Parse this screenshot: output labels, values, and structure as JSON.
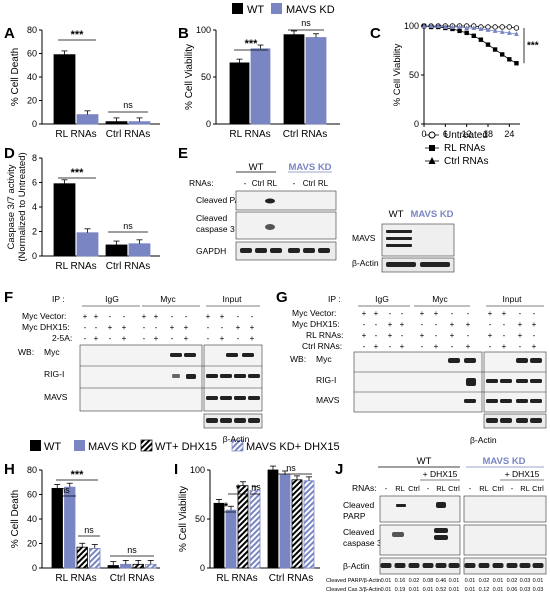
{
  "colors": {
    "wt": "#000000",
    "kd": "#7a86c4",
    "kd_text": "#7a86c4",
    "sig": "#000000"
  },
  "legend_top": {
    "wt": "WT",
    "kd": "MAVS KD"
  },
  "legend_bottom": {
    "wt": "WT",
    "kd": "MAVS KD",
    "wt_dhx": "WT+ DHX15",
    "kd_dhx": "MAVS KD+ DHX15"
  },
  "panels": {
    "A": "A",
    "B": "B",
    "C": "C",
    "D": "D",
    "E": "E",
    "F": "F",
    "G": "G",
    "H": "H",
    "I": "I",
    "J": "J"
  },
  "chart_data": [
    {
      "panel": "A",
      "type": "bar",
      "ylabel": "% Cell Death",
      "ylim": [
        0,
        80
      ],
      "yticks": [
        "0",
        "20",
        "40",
        "60",
        "80"
      ],
      "categories": [
        "RL RNAs",
        "Ctrl RNAs"
      ],
      "series": [
        {
          "name": "WT",
          "values": [
            59,
            2
          ]
        },
        {
          "name": "MAVS KD",
          "values": [
            8,
            2
          ]
        }
      ],
      "annotations": [
        "***",
        "ns"
      ]
    },
    {
      "panel": "B",
      "type": "bar",
      "ylabel": "% Cell Viability",
      "ylim": [
        0,
        100
      ],
      "yticks": [
        "0",
        "50",
        "100"
      ],
      "categories": [
        "RL RNAs",
        "Ctrl RNAs"
      ],
      "series": [
        {
          "name": "WT",
          "values": [
            65,
            95
          ]
        },
        {
          "name": "MAVS KD",
          "values": [
            80,
            92
          ]
        }
      ],
      "annotations": [
        "***",
        "ns"
      ]
    },
    {
      "panel": "C",
      "type": "line",
      "ylabel": "% Cell Viability",
      "ylim": [
        0,
        100
      ],
      "yticks": [
        "0",
        "50",
        "100"
      ],
      "x": [
        0,
        2,
        4,
        6,
        8,
        10,
        12,
        14,
        16,
        18,
        20,
        22,
        24,
        26
      ],
      "xticks": [
        "0",
        "6",
        "12",
        "18",
        "24"
      ],
      "series": [
        {
          "name": "Untreated",
          "marker": "circle",
          "values": [
            100,
            100,
            100,
            100,
            100,
            100,
            100,
            100,
            99,
            99,
            99,
            99,
            99,
            98
          ]
        },
        {
          "name": "RL RNAs",
          "marker": "square",
          "values": [
            100,
            99,
            99,
            98,
            97,
            95,
            93,
            90,
            86,
            81,
            76,
            71,
            66,
            62
          ]
        },
        {
          "name": "Ctrl RNAs",
          "marker": "triangle",
          "values": [
            100,
            100,
            100,
            99,
            99,
            99,
            98,
            98,
            97,
            96,
            95,
            94,
            93,
            92
          ]
        }
      ],
      "annotations": [
        "***"
      ]
    },
    {
      "panel": "D",
      "type": "bar",
      "ylabel": "Caspase 3/7 activity",
      "ylabel2": "(Normalized to Untreated)",
      "ylim": [
        0,
        8
      ],
      "yticks": [
        "0",
        "2",
        "4",
        "6",
        "8"
      ],
      "categories": [
        "RL RNAs",
        "Ctrl RNAs"
      ],
      "series": [
        {
          "name": "WT",
          "values": [
            5.9,
            0.9
          ]
        },
        {
          "name": "MAVS KD",
          "values": [
            1.9,
            1.0
          ]
        }
      ],
      "annotations": [
        "***",
        "ns"
      ]
    },
    {
      "panel": "H",
      "type": "bar",
      "ylabel": "% Cell Death",
      "ylim": [
        0,
        80
      ],
      "yticks": [
        "0",
        "20",
        "40",
        "60",
        "80"
      ],
      "categories": [
        "RL RNAs",
        "Ctrl RNAs"
      ],
      "series": [
        {
          "name": "WT",
          "values": [
            65,
            2
          ]
        },
        {
          "name": "MAVS KD",
          "values": [
            66,
            3
          ]
        },
        {
          "name": "WT+ DHX15",
          "values": [
            17,
            3
          ]
        },
        {
          "name": "MAVS KD+ DHX15",
          "values": [
            16,
            3
          ]
        }
      ],
      "annotations": [
        "***",
        "ns",
        "ns",
        "ns"
      ]
    },
    {
      "panel": "I",
      "type": "bar",
      "ylabel": "% Cell Viability",
      "ylim": [
        0,
        100
      ],
      "yticks": [
        "0",
        "50",
        "100"
      ],
      "categories": [
        "RL RNAs",
        "Ctrl RNAs"
      ],
      "series": [
        {
          "name": "WT",
          "values": [
            66,
            100
          ]
        },
        {
          "name": "MAVS KD",
          "values": [
            59,
            95
          ]
        },
        {
          "name": "WT+ DHX15",
          "values": [
            84,
            90
          ]
        },
        {
          "name": "MAVS KD+ DHX15",
          "values": [
            79,
            89
          ]
        }
      ],
      "annotations": [
        "*",
        "*",
        "ns",
        "ns"
      ]
    }
  ],
  "blotE": {
    "wt": "WT",
    "kd": "MAVS KD",
    "rnas": "RNAs:",
    "lanes": [
      "-",
      "Ctrl",
      "RL",
      "-",
      "Ctrl",
      "RL"
    ],
    "rows": [
      "Cleaved PARP",
      "Cleaved",
      "caspase 3",
      "GAPDH"
    ],
    "side_wt": "WT",
    "side_kd": "MAVS KD",
    "side_rows": [
      "MAVS",
      "β-Actin"
    ]
  },
  "blotF": {
    "ip": "IP :",
    "groups": [
      "IgG",
      "Myc",
      "Input"
    ],
    "conds": [
      "Myc Vector:",
      "Myc DHX15:",
      "2-5A:"
    ],
    "wb": "WB:",
    "rows": [
      "Myc",
      "RIG-I",
      "MAVS"
    ],
    "actin": "β-Actin",
    "vector": [
      "+",
      "+",
      "-",
      "-",
      "+",
      "+",
      "-",
      "-",
      "+",
      "+",
      "-",
      "-"
    ],
    "dhx": [
      "-",
      "-",
      "+",
      "+",
      "-",
      "-",
      "+",
      "+",
      "-",
      "-",
      "+",
      "+"
    ],
    "ab": [
      "-",
      "+",
      "-",
      "+",
      "-",
      "+",
      "-",
      "+",
      "-",
      "+",
      "-",
      "+"
    ]
  },
  "blotG": {
    "ip": "IP :",
    "groups": [
      "IgG",
      "Myc",
      "Input"
    ],
    "conds": [
      "Myc Vector:",
      "Myc DHX15:",
      "RL RNAs:",
      "Ctrl RNAs:"
    ],
    "wb": "WB:",
    "rows": [
      "Myc",
      "RIG-I",
      "MAVS"
    ],
    "actin": "β-Actin",
    "vector": [
      "+",
      "+",
      "-",
      "-",
      "+",
      "+",
      "-",
      "-",
      "+",
      "+",
      "-",
      "-"
    ],
    "dhx": [
      "-",
      "-",
      "+",
      "+",
      "-",
      "-",
      "+",
      "+",
      "-",
      "-",
      "+",
      "+"
    ],
    "rl": [
      "+",
      "-",
      "+",
      "-",
      "+",
      "-",
      "+",
      "-",
      "+",
      "-",
      "+",
      "-"
    ],
    "ctrl": [
      "-",
      "+",
      "-",
      "+",
      "-",
      "+",
      "-",
      "+",
      "-",
      "+",
      "-",
      "+"
    ]
  },
  "blotJ": {
    "wt": "WT",
    "kd": "MAVS KD",
    "dhx": "+ DHX15",
    "rnas": "RNAs:",
    "lanes": [
      "-",
      "RL",
      "Ctrl",
      "-",
      "RL",
      "Ctrl",
      "-",
      "RL",
      "Ctrl",
      "-",
      "RL",
      "Ctrl"
    ],
    "rows": [
      "Cleaved",
      "PARP",
      "Cleaved",
      "caspase 3",
      "β-Actin"
    ],
    "q1_label": "Cleaved PARP/β-Actin",
    "q1": [
      "0.01",
      "0.16",
      "0.02",
      "0.08",
      "0.46",
      "0.01",
      "0.01",
      "0.02",
      "0.01",
      "0.02",
      "0.03",
      "0.01"
    ],
    "q2_label": "Cleaved Cas 3/β-Actin",
    "q2": [
      "0.01",
      "0.19",
      "0.01",
      "0.01",
      "0.52",
      "0.01",
      "0.01",
      "0.12",
      "0.01",
      "0.06",
      "0.03",
      "0.03"
    ]
  }
}
